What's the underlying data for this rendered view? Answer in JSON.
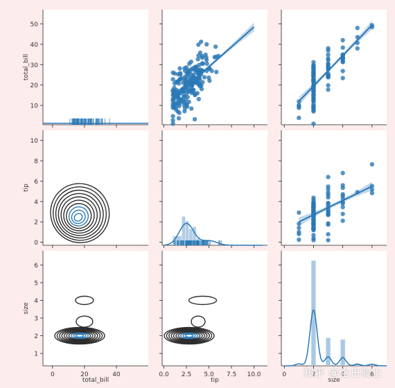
{
  "chart_data": {
    "type": "pairgrid",
    "variables": [
      "total_bill",
      "tip",
      "size"
    ],
    "colors": {
      "accent": "#2a78b5",
      "kde": "#2b2b2b",
      "ci": "#a9c8e3",
      "bg": "#fdecec",
      "panel": "#ffffff"
    },
    "axes": {
      "total_bill": {
        "label": "total_bill",
        "xticks": [
          0,
          20,
          40
        ],
        "yticks": [
          10,
          20,
          30,
          40,
          50
        ],
        "xlim": [
          -6,
          60
        ],
        "ylim": [
          0.5,
          57
        ]
      },
      "tip": {
        "label": "tip",
        "xticks": [
          "0.0",
          "2.5",
          "5.0",
          "7.5",
          "10.0"
        ],
        "yticks": [
          0,
          2,
          4,
          6,
          8,
          10
        ],
        "xlim": [
          -0.2,
          11.5
        ],
        "ylim": [
          -0.3,
          11
        ]
      },
      "size": {
        "label": "size",
        "xticks": [
          0,
          2,
          4,
          6
        ],
        "yticks": [
          1,
          2,
          3,
          4,
          5,
          6
        ],
        "xlim": [
          -0.2,
          7
        ],
        "ylim": [
          0.3,
          6.8
        ]
      }
    },
    "diagonal": {
      "total_bill": {
        "kind": "rug",
        "range": [
          3,
          51
        ]
      },
      "tip": {
        "kind": "hist+kde+rug",
        "bins": [
          1,
          2,
          2.4,
          2.8,
          3.2,
          3.6,
          4,
          5
        ],
        "kde_peak": 2.5
      },
      "size": {
        "kind": "hist+kde",
        "bars": [
          {
            "x": 2,
            "h": 6.4
          },
          {
            "x": 3,
            "h": 1.7
          },
          {
            "x": 4,
            "h": 1.6
          },
          {
            "x": 5,
            "h": 0.15
          },
          {
            "x": 6,
            "h": 0.1
          }
        ]
      }
    },
    "regressions": {
      "total_bill_vs_tip": {
        "slope": 3.9,
        "intercept": 9.5
      },
      "total_bill_vs_size": {
        "slope": 7.5,
        "intercept": 4.5
      },
      "tip_vs_size": {
        "slope": 0.7,
        "intercept": 1.3
      }
    },
    "kde_centers": {
      "tip_vs_total_bill": {
        "x": 16,
        "y": 2.4
      },
      "size_vs_total_bill": {
        "x": 17,
        "y": 2
      },
      "size_vs_tip": {
        "x": 2.8,
        "y": 2
      }
    }
  },
  "watermark": "知乎 @洛日骑士"
}
